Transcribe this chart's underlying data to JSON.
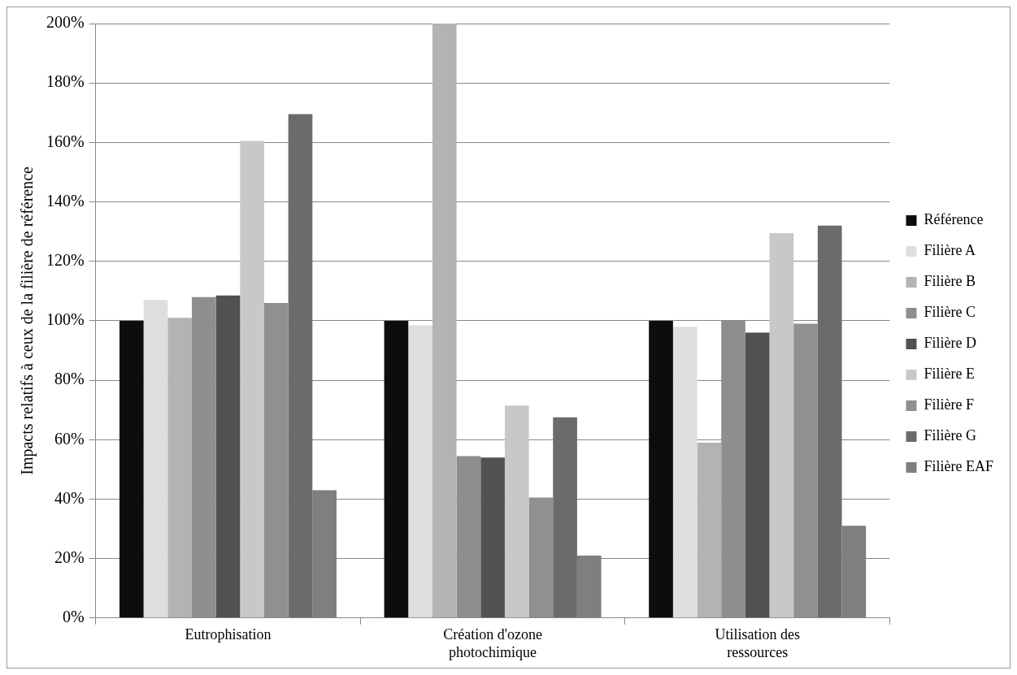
{
  "chart_data": {
    "type": "bar",
    "ylabel": "Impacts relatifs à ceux de la filière de référence",
    "categories": [
      "Eutrophisation",
      "Création d'ozone photochimique",
      "Utilisation des ressources"
    ],
    "series": [
      {
        "name": "Référence",
        "color": "#0d0d0d",
        "values": [
          100,
          100,
          100
        ]
      },
      {
        "name": "Filière A",
        "color": "#dedede",
        "values": [
          107,
          98.5,
          98
        ]
      },
      {
        "name": "Filière B",
        "color": "#b3b3b3",
        "values": [
          101,
          200,
          59
        ]
      },
      {
        "name": "Filière C",
        "color": "#8e8e8e",
        "values": [
          108,
          54.5,
          100
        ]
      },
      {
        "name": "Filière D",
        "color": "#515151",
        "values": [
          108.5,
          54,
          96
        ]
      },
      {
        "name": "Filière E",
        "color": "#c8c8c8",
        "values": [
          160.5,
          71.5,
          129.5
        ]
      },
      {
        "name": "Filière F",
        "color": "#909090",
        "values": [
          106,
          40.5,
          99
        ]
      },
      {
        "name": "Filière G",
        "color": "#6b6b6b",
        "values": [
          169.5,
          67.5,
          132
        ]
      },
      {
        "name": "Filière EAF",
        "color": "#7f7f7f",
        "values": [
          43,
          21,
          31
        ]
      }
    ],
    "ylim": [
      0,
      200
    ],
    "yticks": [
      {
        "value": 0,
        "label": "0%"
      },
      {
        "value": 20,
        "label": "20%"
      },
      {
        "value": 40,
        "label": "40%"
      },
      {
        "value": 60,
        "label": "60%"
      },
      {
        "value": 80,
        "label": "80%"
      },
      {
        "value": 100,
        "label": "100%"
      },
      {
        "value": 120,
        "label": "120%"
      },
      {
        "value": 140,
        "label": "140%"
      },
      {
        "value": 160,
        "label": "160%"
      },
      {
        "value": 180,
        "label": "180%"
      },
      {
        "value": 200,
        "label": "200%"
      }
    ],
    "grid": "y",
    "legend": "right"
  }
}
